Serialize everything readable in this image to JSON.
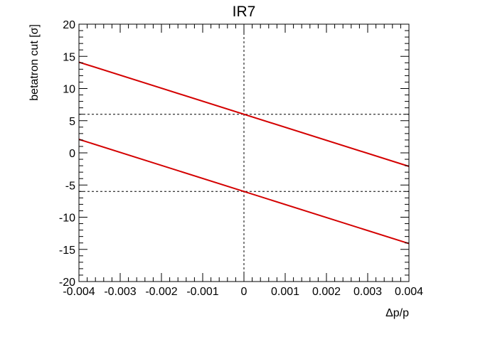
{
  "chart_data": {
    "type": "line",
    "title": "IR7",
    "xlabel": "Δp/p",
    "ylabel": "betatron cut [σ]",
    "xlim": [
      -0.004,
      0.004
    ],
    "ylim": [
      -20,
      20
    ],
    "x_ticks": [
      -0.004,
      -0.003,
      -0.002,
      -0.001,
      0,
      0.001,
      0.002,
      0.003,
      0.004
    ],
    "x_tick_labels": [
      "-0.004",
      "-0.003",
      "-0.002",
      "-0.001",
      "0",
      "0.001",
      "0.002",
      "0.003",
      "0.004"
    ],
    "y_ticks": [
      -20,
      -15,
      -10,
      -5,
      0,
      5,
      10,
      15,
      20
    ],
    "y_tick_labels": [
      "-20",
      "-15",
      "-10",
      "-5",
      "0",
      "5",
      "10",
      "15",
      "20"
    ],
    "grid": false,
    "series": [
      {
        "x": [
          -0.004,
          0.004
        ],
        "y": [
          14.1,
          -2.1
        ],
        "color": "#d40000"
      },
      {
        "x": [
          -0.004,
          0.004
        ],
        "y": [
          2.1,
          -14.1
        ],
        "color": "#d40000"
      }
    ],
    "reference_lines": [
      {
        "orientation": "horizontal",
        "value": 6,
        "style": "dashed"
      },
      {
        "orientation": "horizontal",
        "value": -6,
        "style": "dashed"
      },
      {
        "orientation": "vertical",
        "value": 0,
        "style": "dashed"
      }
    ]
  }
}
